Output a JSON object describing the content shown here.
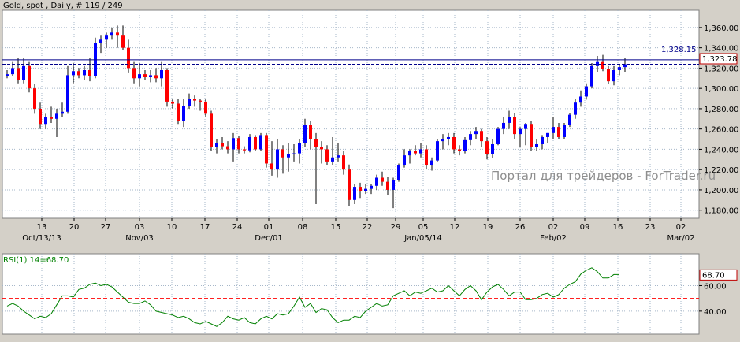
{
  "header": {
    "text": "Gold, spot , Daily, # 119 / 249"
  },
  "watermark": "Портал для трейдеров - ForTrader.ru",
  "colors": {
    "bull": "#0000ff",
    "bear": "#ff0000",
    "wick": "#000000",
    "rsi_line": "#008000",
    "rsi_level": "#ff0000",
    "hline": "#00008b",
    "grid": "#a6b7c9",
    "plot_bg": "#ffffff",
    "panel_bg": "#d4d0c8",
    "price_box": "#c00000"
  },
  "chart_data": [
    {
      "type": "candlestick",
      "title": "Gold, spot , Daily, # 119 / 249",
      "ylim": [
        1172,
        1377
      ],
      "y_ticks": [
        1180,
        1200,
        1220,
        1240,
        1260,
        1280,
        1300,
        1320,
        1340,
        1360
      ],
      "y_tick_labels": [
        "1,180.00",
        "1,200.00",
        "1,220.00",
        "1,240.00",
        "1,260.00",
        "1,280.00",
        "1,300.00",
        "1,320.00",
        "1,340.00",
        "1,360.00"
      ],
      "x_tick_labels": [
        "13",
        "20",
        "27",
        "03",
        "10",
        "17",
        "24",
        "01",
        "08",
        "15",
        "22",
        "29",
        "05",
        "12",
        "19",
        "26",
        "02",
        "09",
        "16",
        "23",
        "02"
      ],
      "x_major_labels": [
        "Oct/13/13",
        "Nov/03",
        "Dec/01",
        "Jan/05/14",
        "Feb/02",
        "Mar/02"
      ],
      "reference_line": {
        "label": "1,328.15",
        "value": 1328.15
      },
      "current_price": {
        "label": "1,323.78",
        "value": 1323.78
      },
      "candles": [
        {
          "o": 1312,
          "h": 1318,
          "l": 1310,
          "c": 1314
        },
        {
          "o": 1314,
          "h": 1326,
          "l": 1312,
          "c": 1320
        },
        {
          "o": 1320,
          "h": 1330,
          "l": 1305,
          "c": 1308
        },
        {
          "o": 1308,
          "h": 1330,
          "l": 1305,
          "c": 1322
        },
        {
          "o": 1322,
          "h": 1326,
          "l": 1296,
          "c": 1300
        },
        {
          "o": 1300,
          "h": 1304,
          "l": 1275,
          "c": 1280
        },
        {
          "o": 1280,
          "h": 1286,
          "l": 1260,
          "c": 1265
        },
        {
          "o": 1265,
          "h": 1275,
          "l": 1260,
          "c": 1272
        },
        {
          "o": 1272,
          "h": 1282,
          "l": 1266,
          "c": 1270
        },
        {
          "o": 1270,
          "h": 1280,
          "l": 1252,
          "c": 1275
        },
        {
          "o": 1275,
          "h": 1286,
          "l": 1272,
          "c": 1277
        },
        {
          "o": 1277,
          "h": 1322,
          "l": 1275,
          "c": 1313
        },
        {
          "o": 1313,
          "h": 1325,
          "l": 1305,
          "c": 1317
        },
        {
          "o": 1317,
          "h": 1320,
          "l": 1310,
          "c": 1313
        },
        {
          "o": 1313,
          "h": 1322,
          "l": 1308,
          "c": 1318
        },
        {
          "o": 1318,
          "h": 1330,
          "l": 1307,
          "c": 1312
        },
        {
          "o": 1312,
          "h": 1350,
          "l": 1310,
          "c": 1345
        },
        {
          "o": 1345,
          "h": 1352,
          "l": 1335,
          "c": 1348
        },
        {
          "o": 1348,
          "h": 1355,
          "l": 1340,
          "c": 1352
        },
        {
          "o": 1352,
          "h": 1360,
          "l": 1348,
          "c": 1355
        },
        {
          "o": 1355,
          "h": 1362,
          "l": 1340,
          "c": 1352
        },
        {
          "o": 1352,
          "h": 1362,
          "l": 1338,
          "c": 1340
        },
        {
          "o": 1340,
          "h": 1348,
          "l": 1315,
          "c": 1320
        },
        {
          "o": 1320,
          "h": 1326,
          "l": 1305,
          "c": 1310
        },
        {
          "o": 1310,
          "h": 1325,
          "l": 1302,
          "c": 1314
        },
        {
          "o": 1314,
          "h": 1318,
          "l": 1308,
          "c": 1311
        },
        {
          "o": 1311,
          "h": 1318,
          "l": 1306,
          "c": 1313
        },
        {
          "o": 1313,
          "h": 1320,
          "l": 1306,
          "c": 1310
        },
        {
          "o": 1310,
          "h": 1326,
          "l": 1302,
          "c": 1318
        },
        {
          "o": 1318,
          "h": 1320,
          "l": 1282,
          "c": 1287
        },
        {
          "o": 1287,
          "h": 1290,
          "l": 1280,
          "c": 1285
        },
        {
          "o": 1285,
          "h": 1290,
          "l": 1265,
          "c": 1268
        },
        {
          "o": 1268,
          "h": 1290,
          "l": 1262,
          "c": 1283
        },
        {
          "o": 1283,
          "h": 1295,
          "l": 1280,
          "c": 1290
        },
        {
          "o": 1290,
          "h": 1293,
          "l": 1282,
          "c": 1288
        },
        {
          "o": 1288,
          "h": 1290,
          "l": 1278,
          "c": 1287
        },
        {
          "o": 1287,
          "h": 1290,
          "l": 1272,
          "c": 1275
        },
        {
          "o": 1275,
          "h": 1278,
          "l": 1238,
          "c": 1242
        },
        {
          "o": 1242,
          "h": 1250,
          "l": 1236,
          "c": 1246
        },
        {
          "o": 1246,
          "h": 1252,
          "l": 1240,
          "c": 1243
        },
        {
          "o": 1243,
          "h": 1248,
          "l": 1236,
          "c": 1240
        },
        {
          "o": 1240,
          "h": 1256,
          "l": 1228,
          "c": 1251
        },
        {
          "o": 1251,
          "h": 1253,
          "l": 1236,
          "c": 1240
        },
        {
          "o": 1240,
          "h": 1243,
          "l": 1236,
          "c": 1239
        },
        {
          "o": 1239,
          "h": 1255,
          "l": 1237,
          "c": 1252
        },
        {
          "o": 1252,
          "h": 1254,
          "l": 1238,
          "c": 1240
        },
        {
          "o": 1240,
          "h": 1256,
          "l": 1238,
          "c": 1254
        },
        {
          "o": 1254,
          "h": 1256,
          "l": 1222,
          "c": 1226
        },
        {
          "o": 1226,
          "h": 1248,
          "l": 1214,
          "c": 1220
        },
        {
          "o": 1220,
          "h": 1250,
          "l": 1212,
          "c": 1240
        },
        {
          "o": 1240,
          "h": 1244,
          "l": 1216,
          "c": 1232
        },
        {
          "o": 1232,
          "h": 1246,
          "l": 1218,
          "c": 1235
        },
        {
          "o": 1235,
          "h": 1245,
          "l": 1228,
          "c": 1236
        },
        {
          "o": 1236,
          "h": 1250,
          "l": 1226,
          "c": 1246
        },
        {
          "o": 1246,
          "h": 1270,
          "l": 1242,
          "c": 1264
        },
        {
          "o": 1264,
          "h": 1268,
          "l": 1240,
          "c": 1250
        },
        {
          "o": 1250,
          "h": 1256,
          "l": 1186,
          "c": 1242
        },
        {
          "o": 1242,
          "h": 1248,
          "l": 1226,
          "c": 1240
        },
        {
          "o": 1240,
          "h": 1244,
          "l": 1224,
          "c": 1228
        },
        {
          "o": 1228,
          "h": 1252,
          "l": 1224,
          "c": 1232
        },
        {
          "o": 1232,
          "h": 1246,
          "l": 1228,
          "c": 1234
        },
        {
          "o": 1234,
          "h": 1238,
          "l": 1215,
          "c": 1220
        },
        {
          "o": 1220,
          "h": 1225,
          "l": 1184,
          "c": 1190
        },
        {
          "o": 1190,
          "h": 1206,
          "l": 1186,
          "c": 1203
        },
        {
          "o": 1203,
          "h": 1207,
          "l": 1192,
          "c": 1199
        },
        {
          "o": 1199,
          "h": 1206,
          "l": 1196,
          "c": 1201
        },
        {
          "o": 1201,
          "h": 1206,
          "l": 1196,
          "c": 1204
        },
        {
          "o": 1204,
          "h": 1215,
          "l": 1200,
          "c": 1212
        },
        {
          "o": 1212,
          "h": 1218,
          "l": 1204,
          "c": 1208
        },
        {
          "o": 1208,
          "h": 1213,
          "l": 1195,
          "c": 1200
        },
        {
          "o": 1200,
          "h": 1212,
          "l": 1182,
          "c": 1210
        },
        {
          "o": 1210,
          "h": 1226,
          "l": 1208,
          "c": 1224
        },
        {
          "o": 1224,
          "h": 1240,
          "l": 1222,
          "c": 1234
        },
        {
          "o": 1234,
          "h": 1240,
          "l": 1226,
          "c": 1238
        },
        {
          "o": 1238,
          "h": 1244,
          "l": 1234,
          "c": 1236
        },
        {
          "o": 1236,
          "h": 1246,
          "l": 1232,
          "c": 1240
        },
        {
          "o": 1240,
          "h": 1244,
          "l": 1220,
          "c": 1224
        },
        {
          "o": 1224,
          "h": 1232,
          "l": 1219,
          "c": 1229
        },
        {
          "o": 1229,
          "h": 1250,
          "l": 1228,
          "c": 1248
        },
        {
          "o": 1248,
          "h": 1255,
          "l": 1240,
          "c": 1250
        },
        {
          "o": 1250,
          "h": 1256,
          "l": 1244,
          "c": 1252
        },
        {
          "o": 1252,
          "h": 1256,
          "l": 1236,
          "c": 1240
        },
        {
          "o": 1240,
          "h": 1244,
          "l": 1234,
          "c": 1238
        },
        {
          "o": 1238,
          "h": 1252,
          "l": 1236,
          "c": 1249
        },
        {
          "o": 1249,
          "h": 1258,
          "l": 1244,
          "c": 1255
        },
        {
          "o": 1255,
          "h": 1262,
          "l": 1250,
          "c": 1258
        },
        {
          "o": 1258,
          "h": 1260,
          "l": 1242,
          "c": 1248
        },
        {
          "o": 1248,
          "h": 1252,
          "l": 1230,
          "c": 1235
        },
        {
          "o": 1235,
          "h": 1250,
          "l": 1231,
          "c": 1245
        },
        {
          "o": 1245,
          "h": 1262,
          "l": 1244,
          "c": 1260
        },
        {
          "o": 1260,
          "h": 1272,
          "l": 1255,
          "c": 1266
        },
        {
          "o": 1266,
          "h": 1278,
          "l": 1260,
          "c": 1272
        },
        {
          "o": 1272,
          "h": 1276,
          "l": 1250,
          "c": 1255
        },
        {
          "o": 1255,
          "h": 1262,
          "l": 1242,
          "c": 1260
        },
        {
          "o": 1260,
          "h": 1266,
          "l": 1244,
          "c": 1265
        },
        {
          "o": 1265,
          "h": 1268,
          "l": 1238,
          "c": 1242
        },
        {
          "o": 1242,
          "h": 1250,
          "l": 1238,
          "c": 1245
        },
        {
          "o": 1245,
          "h": 1254,
          "l": 1240,
          "c": 1252
        },
        {
          "o": 1252,
          "h": 1256,
          "l": 1246,
          "c": 1256
        },
        {
          "o": 1256,
          "h": 1272,
          "l": 1250,
          "c": 1262
        },
        {
          "o": 1262,
          "h": 1266,
          "l": 1250,
          "c": 1252
        },
        {
          "o": 1252,
          "h": 1266,
          "l": 1250,
          "c": 1264
        },
        {
          "o": 1264,
          "h": 1276,
          "l": 1262,
          "c": 1274
        },
        {
          "o": 1274,
          "h": 1290,
          "l": 1270,
          "c": 1286
        },
        {
          "o": 1286,
          "h": 1298,
          "l": 1282,
          "c": 1292
        },
        {
          "o": 1292,
          "h": 1305,
          "l": 1289,
          "c": 1302
        },
        {
          "o": 1302,
          "h": 1325,
          "l": 1300,
          "c": 1322
        },
        {
          "o": 1322,
          "h": 1332,
          "l": 1316,
          "c": 1326
        },
        {
          "o": 1326,
          "h": 1333,
          "l": 1317,
          "c": 1319
        },
        {
          "o": 1319,
          "h": 1322,
          "l": 1304,
          "c": 1307
        },
        {
          "o": 1307,
          "h": 1322,
          "l": 1303,
          "c": 1318
        },
        {
          "o": 1318,
          "h": 1324,
          "l": 1313,
          "c": 1321
        },
        {
          "o": 1321,
          "h": 1330,
          "l": 1316,
          "c": 1323.78
        }
      ],
      "title_series": "Gold, spot"
    },
    {
      "type": "line",
      "title": "RSI(1) 14=68.70",
      "ylim": [
        22,
        85
      ],
      "y_ticks": [
        40,
        60
      ],
      "y_tick_labels": [
        "40.00",
        "60.00"
      ],
      "level_line": 50,
      "current_value": {
        "label": "68.70",
        "value": 68.7
      },
      "series": [
        {
          "values": [
            44,
            46,
            44,
            40,
            37,
            34,
            36,
            35,
            38,
            45,
            52,
            52,
            51,
            57,
            58,
            61,
            62,
            60,
            61,
            59,
            55,
            51,
            47,
            46,
            46,
            48,
            45,
            40,
            39,
            38,
            37,
            35,
            36,
            34,
            31,
            30,
            32,
            30,
            28,
            31,
            36,
            34,
            33,
            35,
            31,
            30,
            34,
            36,
            34,
            38,
            37,
            38,
            44,
            51,
            43,
            46,
            39,
            42,
            41,
            35,
            31,
            33,
            33,
            36,
            35,
            40,
            43,
            46,
            44,
            45,
            52,
            54,
            56,
            52,
            55,
            54,
            56,
            58,
            55,
            56,
            60,
            56,
            52,
            57,
            60,
            56,
            49,
            55,
            59,
            61,
            57,
            52,
            55,
            55,
            49,
            49,
            50,
            53,
            54,
            51,
            53,
            58,
            61,
            63,
            69,
            72,
            74,
            71,
            66,
            66,
            68.7,
            68.7
          ]
        }
      ]
    }
  ]
}
